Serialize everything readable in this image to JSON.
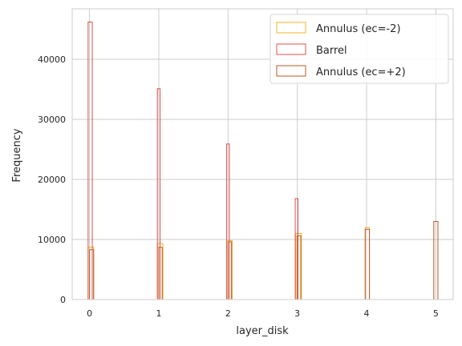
{
  "chart_data": {
    "type": "histogram",
    "title": "",
    "xlabel": "layer_disk",
    "ylabel": "Frequency",
    "xlim": [
      -0.25,
      5.25
    ],
    "ylim": [
      0,
      48400
    ],
    "x_ticks": [
      0,
      1,
      2,
      3,
      4,
      5
    ],
    "y_ticks": [
      0,
      10000,
      20000,
      30000,
      40000
    ],
    "grid": true,
    "legend_position": "top-right",
    "series": [
      {
        "name": "Annulus (ec=-2)",
        "color": "#f0b428",
        "bins": [
          {
            "x0": -0.02,
            "x1": 0.06,
            "y": 8700
          },
          {
            "x0": 0.98,
            "x1": 1.06,
            "y": 9300
          },
          {
            "x0": 1.98,
            "x1": 2.06,
            "y": 9800
          },
          {
            "x0": 2.98,
            "x1": 3.06,
            "y": 11000
          },
          {
            "x0": 3.98,
            "x1": 4.04,
            "y": 12000
          }
        ]
      },
      {
        "name": "Barrel",
        "color": "#e0524a",
        "bins": [
          {
            "x0": -0.02,
            "x1": 0.04,
            "y": 46200
          },
          {
            "x0": 0.98,
            "x1": 1.02,
            "y": 35100
          },
          {
            "x0": 1.98,
            "x1": 2.02,
            "y": 25900
          },
          {
            "x0": 2.97,
            "x1": 3.01,
            "y": 16800
          }
        ]
      },
      {
        "name": "Annulus (ec=+2)",
        "color": "#b85a28",
        "bins": [
          {
            "x0": 0.0,
            "x1": 0.06,
            "y": 8300
          },
          {
            "x0": 1.0,
            "x1": 1.05,
            "y": 8700
          },
          {
            "x0": 2.0,
            "x1": 2.05,
            "y": 9600
          },
          {
            "x0": 3.0,
            "x1": 3.05,
            "y": 10600
          },
          {
            "x0": 3.98,
            "x1": 4.04,
            "y": 11700
          },
          {
            "x0": 4.97,
            "x1": 5.03,
            "y": 13000
          }
        ]
      }
    ]
  }
}
